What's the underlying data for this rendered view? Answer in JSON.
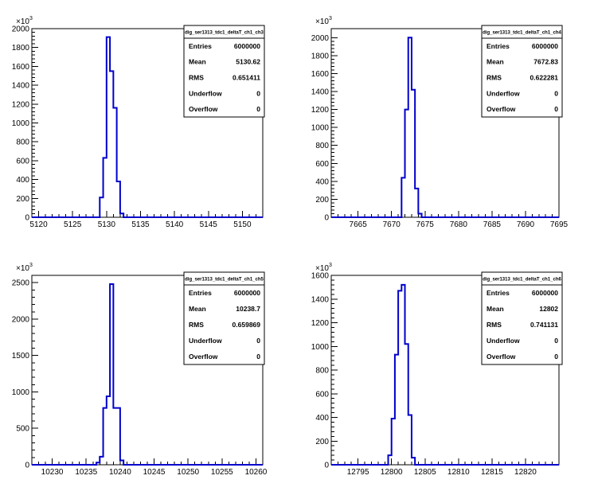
{
  "chart_data": [
    {
      "type": "bar",
      "title": "dig_ser1313_tdc1_deltaT_ch1_ch3",
      "exponent_base": "×10",
      "exponent_power": "3",
      "xlim": [
        5119,
        5153
      ],
      "ylim": [
        0,
        2000
      ],
      "xticks": [
        5120,
        5125,
        5130,
        5135,
        5140,
        5145,
        5150
      ],
      "yticks": [
        0,
        200,
        400,
        600,
        800,
        1000,
        1200,
        1400,
        1600,
        1800,
        2000
      ],
      "bin_width": 0.5,
      "bins": [
        [
          5128.5,
          0
        ],
        [
          5129.0,
          210
        ],
        [
          5129.5,
          630
        ],
        [
          5130.0,
          1910
        ],
        [
          5130.5,
          1550
        ],
        [
          5131.0,
          1160
        ],
        [
          5131.5,
          380
        ],
        [
          5132.0,
          40
        ],
        [
          5132.5,
          0
        ]
      ],
      "stats": [
        {
          "label": "Entries",
          "value": "6000000"
        },
        {
          "label": "Mean",
          "value": "5130.62"
        },
        {
          "label": "RMS",
          "value": "0.651411"
        },
        {
          "label": "Underflow",
          "value": "0"
        },
        {
          "label": "Overflow",
          "value": "0"
        }
      ],
      "grid": false
    },
    {
      "type": "bar",
      "title": "dig_ser1313_tdc1_deltaT_ch1_ch4",
      "exponent_base": "×10",
      "exponent_power": "3",
      "xlim": [
        7661,
        7695
      ],
      "ylim": [
        0,
        2100
      ],
      "xticks": [
        7665,
        7670,
        7675,
        7680,
        7685,
        7690,
        7695
      ],
      "yticks": [
        0,
        200,
        400,
        600,
        800,
        1000,
        1200,
        1400,
        1600,
        1800,
        2000
      ],
      "bin_width": 0.5,
      "bins": [
        [
          7671.0,
          0
        ],
        [
          7671.5,
          440
        ],
        [
          7672.0,
          1200
        ],
        [
          7672.5,
          2000
        ],
        [
          7673.0,
          1420
        ],
        [
          7673.5,
          320
        ],
        [
          7674.0,
          40
        ],
        [
          7674.5,
          0
        ]
      ],
      "stats": [
        {
          "label": "Entries",
          "value": "6000000"
        },
        {
          "label": "Mean",
          "value": "7672.83"
        },
        {
          "label": "RMS",
          "value": "0.622281"
        },
        {
          "label": "Underflow",
          "value": "0"
        },
        {
          "label": "Overflow",
          "value": "0"
        }
      ],
      "grid": false
    },
    {
      "type": "bar",
      "title": "dig_ser1313_tdc1_deltaT_ch1_ch5",
      "exponent_base": "×10",
      "exponent_power": "3",
      "xlim": [
        10227,
        10261
      ],
      "ylim": [
        0,
        2600
      ],
      "xticks": [
        10230,
        10235,
        10240,
        10245,
        10250,
        10255,
        10260
      ],
      "yticks": [
        0,
        500,
        1000,
        1500,
        2000,
        2500
      ],
      "bin_width": 0.5,
      "bins": [
        [
          10236.5,
          30
        ],
        [
          10237.0,
          110
        ],
        [
          10237.5,
          780
        ],
        [
          10238.0,
          940
        ],
        [
          10238.5,
          2480
        ],
        [
          10239.0,
          780
        ],
        [
          10239.5,
          780
        ],
        [
          10240.0,
          60
        ],
        [
          10240.5,
          0
        ]
      ],
      "stats": [
        {
          "label": "Entries",
          "value": "6000000"
        },
        {
          "label": "Mean",
          "value": "10238.7"
        },
        {
          "label": "RMS",
          "value": "0.659869"
        },
        {
          "label": "Underflow",
          "value": "0"
        },
        {
          "label": "Overflow",
          "value": "0"
        }
      ],
      "grid": false
    },
    {
      "type": "bar",
      "title": "dig_ser1313_tdc1_deltaT_ch1_ch6",
      "exponent_base": "×10",
      "exponent_power": "3",
      "xlim": [
        12791,
        12825
      ],
      "ylim": [
        0,
        1600
      ],
      "xticks": [
        12795,
        12800,
        12805,
        12810,
        12815,
        12820
      ],
      "yticks": [
        0,
        200,
        400,
        600,
        800,
        1000,
        1200,
        1400,
        1600
      ],
      "bin_width": 0.5,
      "bins": [
        [
          12799.5,
          80
        ],
        [
          12800.0,
          390
        ],
        [
          12800.5,
          930
        ],
        [
          12801.0,
          1470
        ],
        [
          12801.5,
          1520
        ],
        [
          12802.0,
          1020
        ],
        [
          12802.5,
          420
        ],
        [
          12803.0,
          60
        ],
        [
          12803.5,
          0
        ]
      ],
      "stats": [
        {
          "label": "Entries",
          "value": "6000000"
        },
        {
          "label": "Mean",
          "value": "12802"
        },
        {
          "label": "RMS",
          "value": "0.741131"
        },
        {
          "label": "Underflow",
          "value": "0"
        },
        {
          "label": "Overflow",
          "value": "0"
        }
      ],
      "grid": false
    }
  ]
}
